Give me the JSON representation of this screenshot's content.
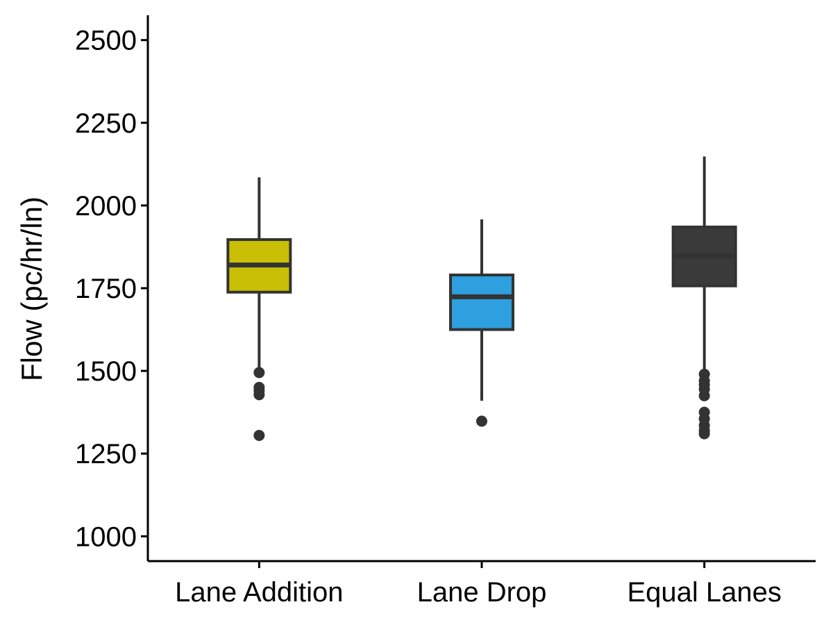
{
  "chart_data": {
    "type": "boxplot",
    "title": "",
    "xlabel": "",
    "ylabel": "Flow (pc/hr/ln)",
    "ylim": [
      925,
      2575
    ],
    "yticks": [
      1000,
      1250,
      1500,
      1750,
      2000,
      2250,
      2500
    ],
    "grid": false,
    "legend": "none",
    "categories": [
      "Lane Addition",
      "Lane Drop",
      "Equal Lanes"
    ],
    "boxes": [
      {
        "category": "Lane Addition",
        "color": "#c8bf06",
        "whisker_low": 1500,
        "q1": 1738,
        "median": 1820,
        "q3": 1897,
        "whisker_high": 2085,
        "outliers": [
          1495,
          1450,
          1440,
          1428,
          1305
        ]
      },
      {
        "category": "Lane Drop",
        "color": "#2e9fdf",
        "whisker_low": 1410,
        "q1": 1625,
        "median": 1724,
        "q3": 1790,
        "whisker_high": 1958,
        "outliers": [
          1348
        ]
      },
      {
        "category": "Equal Lanes",
        "color": "#3a3a3a",
        "whisker_low": 1500,
        "q1": 1757,
        "median": 1848,
        "q3": 1935,
        "whisker_high": 2148,
        "outliers": [
          1490,
          1470,
          1458,
          1445,
          1425,
          1375,
          1355,
          1335,
          1320,
          1310
        ]
      }
    ]
  },
  "colors": {
    "axis": "#000000",
    "box_line": "#333333",
    "outlier": "#333333"
  }
}
